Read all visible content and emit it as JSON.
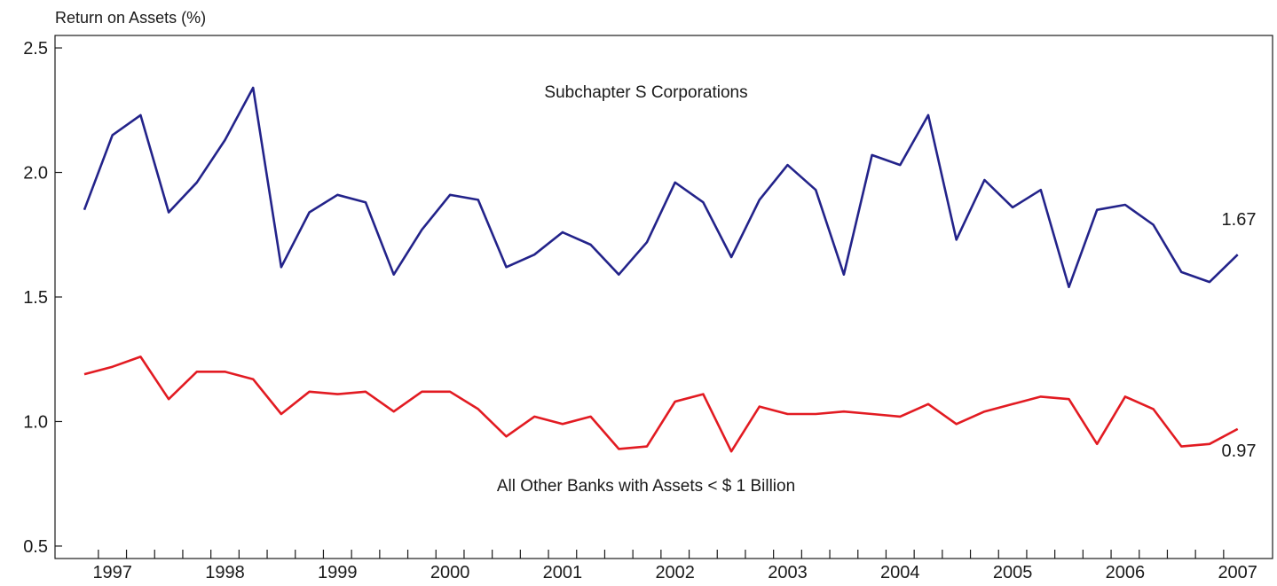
{
  "chart_data": {
    "type": "line",
    "ylabel": "Return on Assets (%)",
    "xlabel": "",
    "ylim": [
      0.45,
      2.55
    ],
    "yticks": [
      0.5,
      1.0,
      1.5,
      2.0,
      2.5
    ],
    "ytick_labels": [
      "0.5",
      "1.0",
      "1.5",
      "2.0",
      "2.5"
    ],
    "x_labels": [
      "1997",
      "1998",
      "1999",
      "2000",
      "2001",
      "2002",
      "2003",
      "2004",
      "2005",
      "2006",
      "2007"
    ],
    "points_per_year": 4,
    "grid": false,
    "series": [
      {
        "name": "Subchapter S Corporations",
        "color": "#23238a",
        "end_label": "1.67",
        "values": [
          1.85,
          2.15,
          2.23,
          1.84,
          1.96,
          2.13,
          2.34,
          1.62,
          1.84,
          1.91,
          1.88,
          1.59,
          1.77,
          1.91,
          1.89,
          1.62,
          1.67,
          1.76,
          1.71,
          1.59,
          1.72,
          1.96,
          1.88,
          1.66,
          1.89,
          2.03,
          1.93,
          1.59,
          2.07,
          2.03,
          2.23,
          1.73,
          1.97,
          1.86,
          1.93,
          1.54,
          1.85,
          1.87,
          1.79,
          1.6,
          1.56,
          1.67
        ]
      },
      {
        "name": "All Other Banks with Assets < $ 1 Billion",
        "color": "#e21b22",
        "end_label": "0.97",
        "values": [
          1.19,
          1.22,
          1.26,
          1.09,
          1.2,
          1.2,
          1.17,
          1.03,
          1.12,
          1.11,
          1.12,
          1.04,
          1.12,
          1.12,
          1.05,
          0.94,
          1.02,
          0.99,
          1.02,
          0.89,
          0.9,
          1.08,
          1.11,
          0.88,
          1.06,
          1.03,
          1.03,
          1.04,
          1.03,
          1.02,
          1.07,
          0.99,
          1.04,
          1.07,
          1.1,
          1.09,
          0.91,
          1.1,
          1.05,
          0.9,
          0.91,
          0.97
        ]
      }
    ]
  }
}
